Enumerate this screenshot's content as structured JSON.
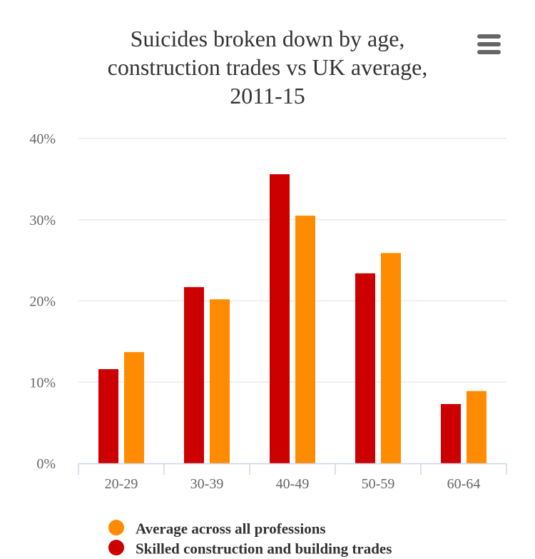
{
  "menu_icon": "hamburger-menu-icon",
  "chart_data": {
    "type": "bar",
    "title": "Suicides broken down by age, construction trades vs UK average, 2011-15",
    "title_lines": [
      "Suicides broken down by age,",
      "construction trades vs UK average,",
      "2011-15"
    ],
    "categories": [
      "20-29",
      "30-39",
      "40-49",
      "50-59",
      "60-64"
    ],
    "series": [
      {
        "name": "Skilled construction and building trades",
        "color": "#cc0000",
        "values": [
          11.6,
          21.7,
          35.6,
          23.4,
          7.3
        ]
      },
      {
        "name": "Average across all professions",
        "color": "#ff8c00",
        "values": [
          13.7,
          20.2,
          30.5,
          25.9,
          8.9
        ]
      }
    ],
    "legend_order": [
      1,
      0
    ],
    "ylim": [
      0,
      40
    ],
    "yticks": [
      0,
      10,
      20,
      30,
      40
    ],
    "ytick_labels": [
      "0%",
      "10%",
      "20%",
      "30%",
      "40%"
    ],
    "xlabel": "",
    "ylabel": "",
    "grid": true,
    "legend_position": "bottom-left"
  }
}
